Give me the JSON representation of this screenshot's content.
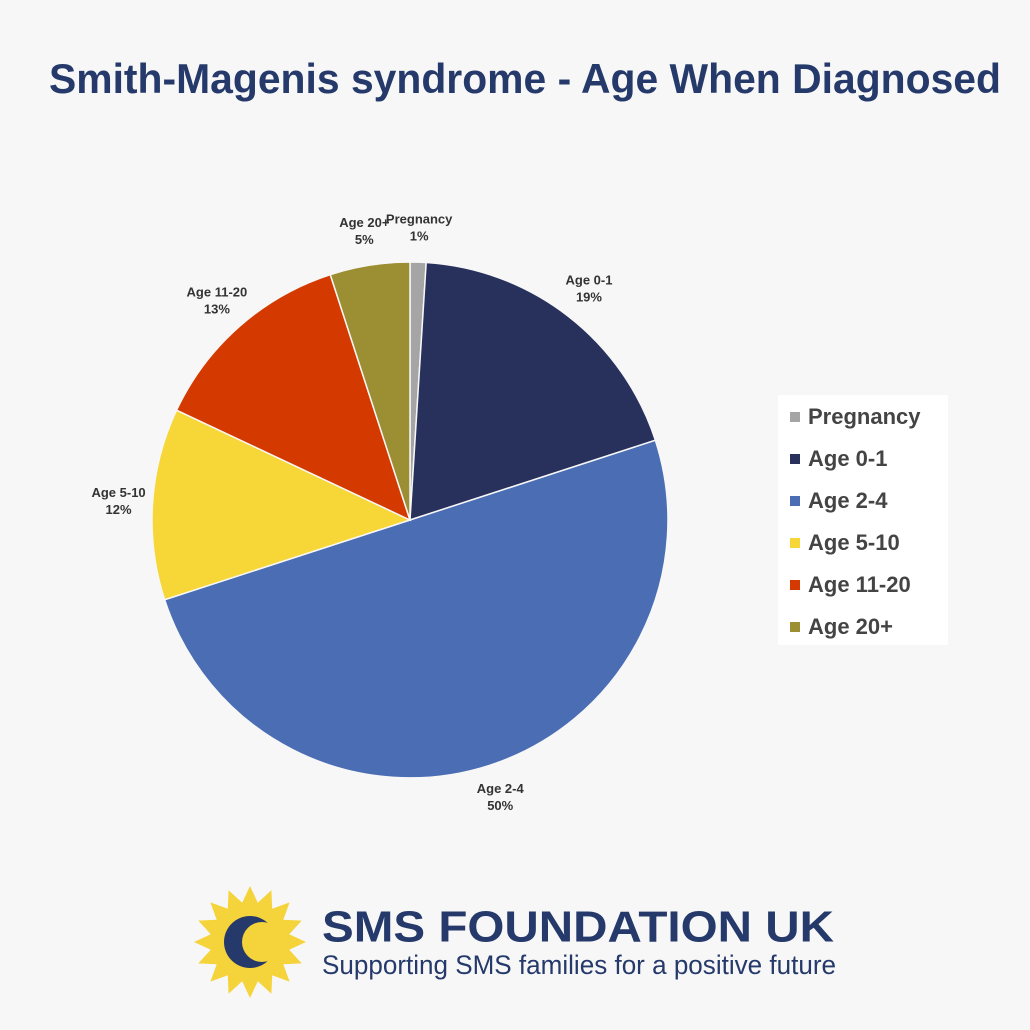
{
  "chart_data": {
    "type": "pie",
    "title": "Smith-Magenis syndrome - Age When Diagnosed",
    "categories": [
      "Pregnancy",
      "Age 0-1",
      "Age 2-4",
      "Age 5-10",
      "Age 11-20",
      "Age 20+"
    ],
    "values": [
      1,
      19,
      50,
      12,
      13,
      5
    ],
    "value_labels": [
      "1%",
      "19%",
      "50%",
      "12%",
      "13%",
      "5%"
    ],
    "colors": [
      "#a5a5a5",
      "#28305c",
      "#4a6db3",
      "#f7d637",
      "#d43a00",
      "#9c8e32"
    ],
    "legend": "right"
  },
  "footer": {
    "title": "SMS FOUNDATION UK",
    "tagline": "Supporting SMS families for a positive future"
  }
}
